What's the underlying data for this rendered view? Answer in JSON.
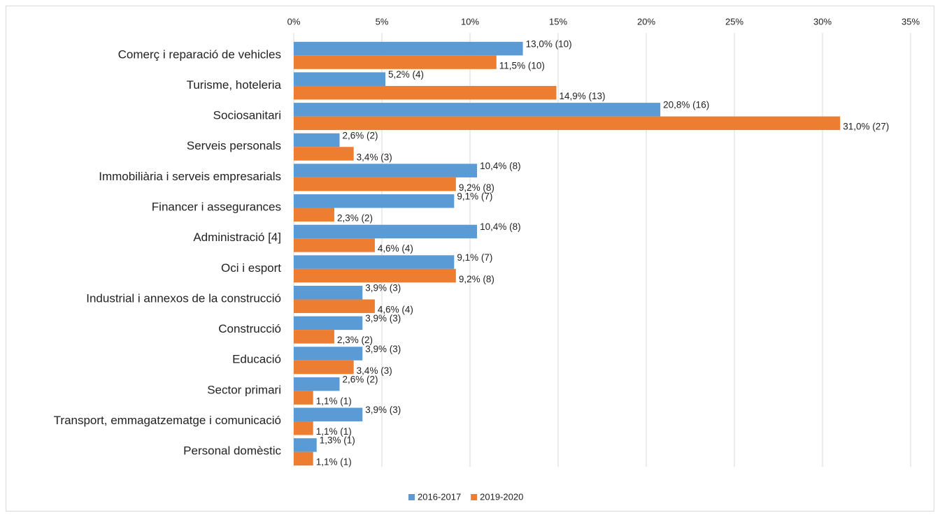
{
  "chart_data": {
    "type": "hbar",
    "categories": [
      "Comerç i reparació de vehicles",
      "Turisme, hoteleria",
      "Sociosanitari",
      "Serveis personals",
      "Immobiliària i serveis empresarials",
      "Financer i assegurances",
      "Administració [4]",
      "Oci i esport",
      "Industrial i annexos de la construcció",
      "Construcció",
      "Educació",
      "Sector primari",
      "Transport, emmagatzematge i comunicació",
      "Personal domèstic"
    ],
    "series": [
      {
        "name": "2016-2017",
        "color": "#5b9bd5",
        "values": [
          13.0,
          5.2,
          20.8,
          2.6,
          10.4,
          9.1,
          10.4,
          9.1,
          3.9,
          3.9,
          3.9,
          2.6,
          3.9,
          1.3
        ],
        "value_labels": [
          "13,0% (10)",
          "5,2% (4)",
          "20,8% (16)",
          "2,6% (2)",
          "10,4% (8)",
          "9,1% (7)",
          "10,4% (8)",
          "9,1% (7)",
          "3,9% (3)",
          "3,9% (3)",
          "3,9% (3)",
          "2,6% (2)",
          "3,9% (3)",
          "1,3% (1)"
        ]
      },
      {
        "name": "2019-2020",
        "color": "#ed7d31",
        "values": [
          11.5,
          14.9,
          31.0,
          3.4,
          9.2,
          2.3,
          4.6,
          9.2,
          4.6,
          2.3,
          3.4,
          1.1,
          1.1,
          1.1
        ],
        "value_labels": [
          "11,5% (10)",
          "14,9% (13)",
          "31,0% (27)",
          "3,4% (3)",
          "9,2% (8)",
          "2,3% (2)",
          "4,6% (4)",
          "9,2% (8)",
          "4,6% (4)",
          "2,3% (2)",
          "3,4% (3)",
          "1,1% (1)",
          "1,1% (1)",
          "1,1% (1)"
        ]
      }
    ],
    "xlim": [
      0,
      35
    ],
    "xticks": [
      {
        "value": 0,
        "label": "0%"
      },
      {
        "value": 5,
        "label": "5%"
      },
      {
        "value": 10,
        "label": "10%"
      },
      {
        "value": 15,
        "label": "15%"
      },
      {
        "value": 20,
        "label": "20%"
      },
      {
        "value": 25,
        "label": "25%"
      },
      {
        "value": 30,
        "label": "30%"
      },
      {
        "value": 35,
        "label": "35%"
      }
    ],
    "grid": true,
    "legend": "bottom"
  }
}
